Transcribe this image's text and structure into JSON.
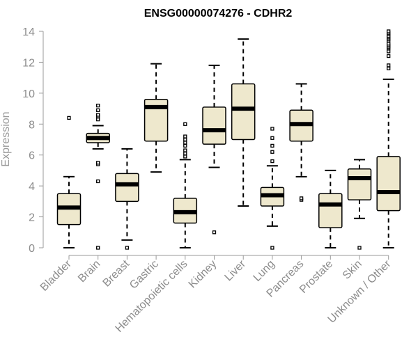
{
  "chart_data": {
    "type": "boxplot",
    "title": "ENSG00000074276 - CDHR2",
    "xlabel": "",
    "ylabel": "Expression",
    "ylim": [
      0,
      14
    ],
    "yticks": [
      0,
      2,
      4,
      6,
      8,
      10,
      12,
      14
    ],
    "grid": false,
    "box_fill": "#eee8cd",
    "box_stroke": "#000000",
    "categories": [
      "Bladder",
      "Brain",
      "Breast",
      "Gastric",
      "Hematopoietic cells",
      "Kidney",
      "Liver",
      "Lung",
      "Pancreas",
      "Prostate",
      "Skin",
      "Unknown / Other"
    ],
    "boxes": [
      {
        "whisker_low": 0.0,
        "q1": 1.5,
        "median": 2.6,
        "q3": 3.5,
        "whisker_high": 4.6,
        "outliers": [
          8.4
        ]
      },
      {
        "whisker_low": 6.4,
        "q1": 6.8,
        "median": 7.1,
        "q3": 7.4,
        "whisker_high": 7.9,
        "outliers": [
          0.0,
          4.3,
          5.4,
          5.5,
          8.3,
          8.5,
          8.6,
          8.9,
          9.2
        ]
      },
      {
        "whisker_low": 0.5,
        "q1": 3.0,
        "median": 4.1,
        "q3": 4.8,
        "whisker_high": 6.4,
        "outliers": [
          0.0
        ]
      },
      {
        "whisker_low": 4.9,
        "q1": 6.9,
        "median": 9.1,
        "q3": 9.6,
        "whisker_high": 11.9,
        "outliers": []
      },
      {
        "whisker_low": 0.0,
        "q1": 1.6,
        "median": 2.3,
        "q3": 3.2,
        "whisker_high": 5.7,
        "outliers": [
          5.9,
          6.1,
          6.3,
          6.6,
          6.8,
          7.0,
          7.2,
          8.0
        ]
      },
      {
        "whisker_low": 5.2,
        "q1": 6.7,
        "median": 7.6,
        "q3": 9.1,
        "whisker_high": 11.8,
        "outliers": [
          1.0
        ]
      },
      {
        "whisker_low": 2.7,
        "q1": 7.0,
        "median": 9.0,
        "q3": 10.6,
        "whisker_high": 13.5,
        "outliers": []
      },
      {
        "whisker_low": 1.4,
        "q1": 2.7,
        "median": 3.4,
        "q3": 3.9,
        "whisker_high": 5.3,
        "outliers": [
          0.0,
          5.6,
          6.2,
          6.6,
          7.1,
          7.7
        ]
      },
      {
        "whisker_low": 4.6,
        "q1": 6.9,
        "median": 8.0,
        "q3": 8.9,
        "whisker_high": 10.6,
        "outliers": [
          3.1,
          3.2
        ]
      },
      {
        "whisker_low": 0.0,
        "q1": 1.3,
        "median": 2.8,
        "q3": 3.5,
        "whisker_high": 5.0,
        "outliers": []
      },
      {
        "whisker_low": 1.9,
        "q1": 3.1,
        "median": 4.5,
        "q3": 5.1,
        "whisker_high": 5.7,
        "outliers": [
          0.0
        ]
      },
      {
        "whisker_low": 0.0,
        "q1": 2.4,
        "median": 3.6,
        "q3": 5.9,
        "whisker_high": 10.9,
        "outliers": [
          11.6,
          11.8,
          12.4,
          12.7,
          12.9,
          13.0,
          13.1,
          13.2,
          13.4,
          13.5,
          13.6,
          13.7,
          13.8,
          13.9,
          14.0
        ]
      }
    ]
  }
}
